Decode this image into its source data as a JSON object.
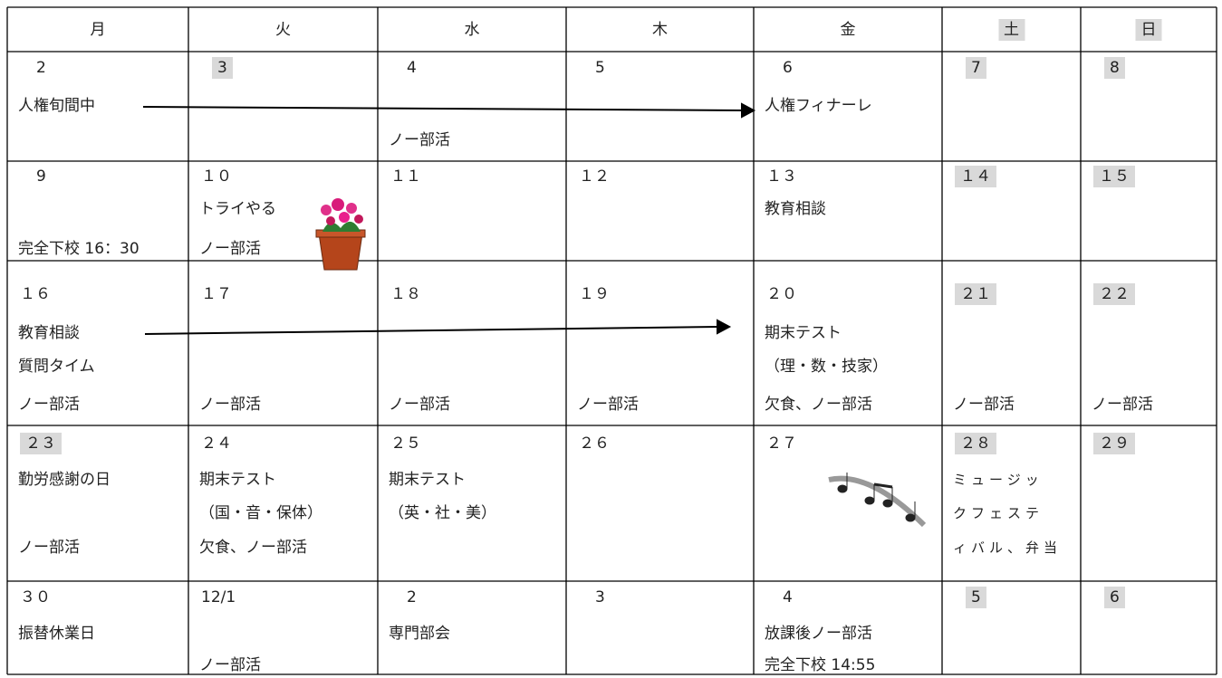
{
  "header": [
    {
      "text": "月"
    },
    {
      "text": "火"
    },
    {
      "text": "水"
    },
    {
      "text": "木"
    },
    {
      "text": "金"
    },
    {
      "text": "土",
      "shaded": true
    },
    {
      "text": "日",
      "shaded": true
    }
  ],
  "rows": [
    {
      "cells": [
        {
          "day": "2",
          "lines": [
            "人権旬間中"
          ]
        },
        {
          "day": "3",
          "shaded": true,
          "lines": []
        },
        {
          "day": "4",
          "lines": [
            "ノー部活"
          ]
        },
        {
          "day": "5",
          "lines": []
        },
        {
          "day": "6",
          "lines": [
            "人権フィナーレ"
          ]
        },
        {
          "day": "7",
          "shaded": true,
          "lines": []
        },
        {
          "day": "8",
          "shaded": true,
          "lines": []
        }
      ]
    },
    {
      "cells": [
        {
          "day": "9",
          "lines": [
            "完全下校 16：30"
          ]
        },
        {
          "day": "１０",
          "lines": [
            "トライやる",
            "ノー部活"
          ]
        },
        {
          "day": "１１",
          "lines": []
        },
        {
          "day": "１２",
          "lines": []
        },
        {
          "day": "１３",
          "lines": [
            "教育相談"
          ]
        },
        {
          "day": "１４",
          "shaded": true,
          "lines": []
        },
        {
          "day": "１５",
          "shaded": true,
          "lines": []
        }
      ]
    },
    {
      "cells": [
        {
          "day": "１６",
          "lines": [
            "教育相談",
            "質問タイム",
            "ノー部活"
          ]
        },
        {
          "day": "１７",
          "lines": [
            "ノー部活"
          ]
        },
        {
          "day": "１８",
          "lines": [
            "ノー部活"
          ]
        },
        {
          "day": "１９",
          "lines": [
            "ノー部活"
          ]
        },
        {
          "day": "２０",
          "lines": [
            "期末テスト",
            "（理・数・技家）",
            "欠食、ノー部活"
          ]
        },
        {
          "day": "２１",
          "shaded": true,
          "lines": [
            "ノー部活"
          ]
        },
        {
          "day": "２２",
          "shaded": true,
          "lines": [
            "ノー部活"
          ]
        }
      ]
    },
    {
      "cells": [
        {
          "day": "２３",
          "shaded": true,
          "lines": [
            "勤労感謝の日",
            "ノー部活"
          ]
        },
        {
          "day": "２４",
          "lines": [
            "期末テスト",
            "（国・音・保体）",
            "欠食、ノー部活"
          ]
        },
        {
          "day": "２５",
          "lines": [
            "期末テスト",
            "（英・社・美）"
          ]
        },
        {
          "day": "２６",
          "lines": []
        },
        {
          "day": "２７",
          "lines": []
        },
        {
          "day": "２８",
          "shaded": true,
          "lines": [
            "ミュージッ",
            "クフェステ",
            "ィバル、弁当"
          ]
        },
        {
          "day": "２９",
          "shaded": true,
          "lines": []
        }
      ]
    },
    {
      "cells": [
        {
          "day": "３０",
          "lines": [
            "振替休業日"
          ]
        },
        {
          "day": "12/1",
          "lines": [
            "ノー部活"
          ]
        },
        {
          "day": "2",
          "lines": [
            "専門部会"
          ]
        },
        {
          "day": "3",
          "lines": []
        },
        {
          "day": "4",
          "lines": [
            "放課後ノー部活",
            "完全下校 14:55"
          ]
        },
        {
          "day": "5",
          "shaded": true,
          "lines": []
        },
        {
          "day": "6",
          "shaded": true,
          "lines": []
        }
      ]
    }
  ]
}
